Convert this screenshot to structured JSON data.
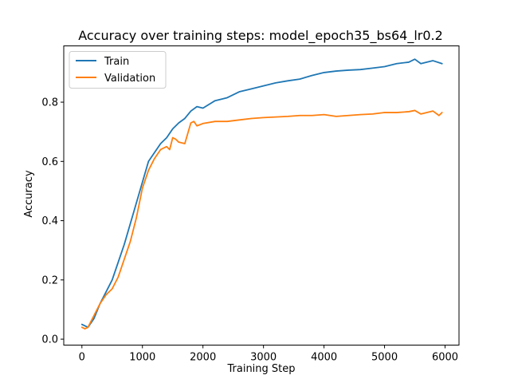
{
  "chart_data": {
    "type": "line",
    "title": "Accuracy over training steps: model_epoch35_bs64_lr0.2",
    "xlabel": "Training Step",
    "ylabel": "Accuracy",
    "xlim": [
      -300,
      6230
    ],
    "ylim": [
      -0.02,
      0.99
    ],
    "xticks": [
      0,
      1000,
      2000,
      3000,
      4000,
      5000,
      6000
    ],
    "yticks": [
      0.0,
      0.2,
      0.4,
      0.6,
      0.8
    ],
    "xtick_labels": [
      "0",
      "1000",
      "2000",
      "3000",
      "4000",
      "5000",
      "6000"
    ],
    "ytick_labels": [
      "0.0",
      "0.2",
      "0.4",
      "0.6",
      "0.8"
    ],
    "grid": false,
    "legend": "top-left",
    "series": [
      {
        "name": "Train",
        "color": "#1f77b4",
        "x": [
          0,
          100,
          200,
          300,
          400,
          500,
          600,
          700,
          800,
          900,
          1000,
          1100,
          1200,
          1300,
          1400,
          1500,
          1600,
          1700,
          1800,
          1900,
          2000,
          2200,
          2400,
          2600,
          2800,
          3000,
          3200,
          3400,
          3600,
          3800,
          4000,
          4200,
          4400,
          4600,
          4800,
          5000,
          5200,
          5400,
          5500,
          5600,
          5700,
          5800,
          5950
        ],
        "y": [
          0.05,
          0.04,
          0.07,
          0.12,
          0.16,
          0.2,
          0.26,
          0.32,
          0.39,
          0.46,
          0.53,
          0.6,
          0.63,
          0.66,
          0.68,
          0.71,
          0.73,
          0.745,
          0.77,
          0.785,
          0.78,
          0.805,
          0.815,
          0.835,
          0.845,
          0.855,
          0.865,
          0.872,
          0.878,
          0.89,
          0.9,
          0.905,
          0.908,
          0.91,
          0.915,
          0.92,
          0.93,
          0.935,
          0.945,
          0.93,
          0.935,
          0.94,
          0.93
        ]
      },
      {
        "name": "Validation",
        "color": "#ff7f0e",
        "x": [
          0,
          50,
          100,
          200,
          300,
          400,
          500,
          600,
          700,
          800,
          900,
          1000,
          1100,
          1200,
          1300,
          1400,
          1450,
          1500,
          1550,
          1600,
          1700,
          1800,
          1850,
          1900,
          2000,
          2200,
          2400,
          2600,
          2800,
          3000,
          3200,
          3400,
          3600,
          3800,
          4000,
          4200,
          4400,
          4600,
          4800,
          5000,
          5200,
          5400,
          5500,
          5600,
          5700,
          5800,
          5900,
          5950
        ],
        "y": [
          0.04,
          0.035,
          0.04,
          0.08,
          0.12,
          0.15,
          0.17,
          0.21,
          0.27,
          0.33,
          0.41,
          0.51,
          0.57,
          0.61,
          0.64,
          0.65,
          0.64,
          0.68,
          0.675,
          0.665,
          0.66,
          0.73,
          0.735,
          0.72,
          0.728,
          0.735,
          0.735,
          0.74,
          0.745,
          0.748,
          0.75,
          0.752,
          0.755,
          0.755,
          0.758,
          0.752,
          0.755,
          0.758,
          0.76,
          0.765,
          0.765,
          0.768,
          0.772,
          0.76,
          0.765,
          0.77,
          0.755,
          0.765
        ]
      }
    ]
  }
}
